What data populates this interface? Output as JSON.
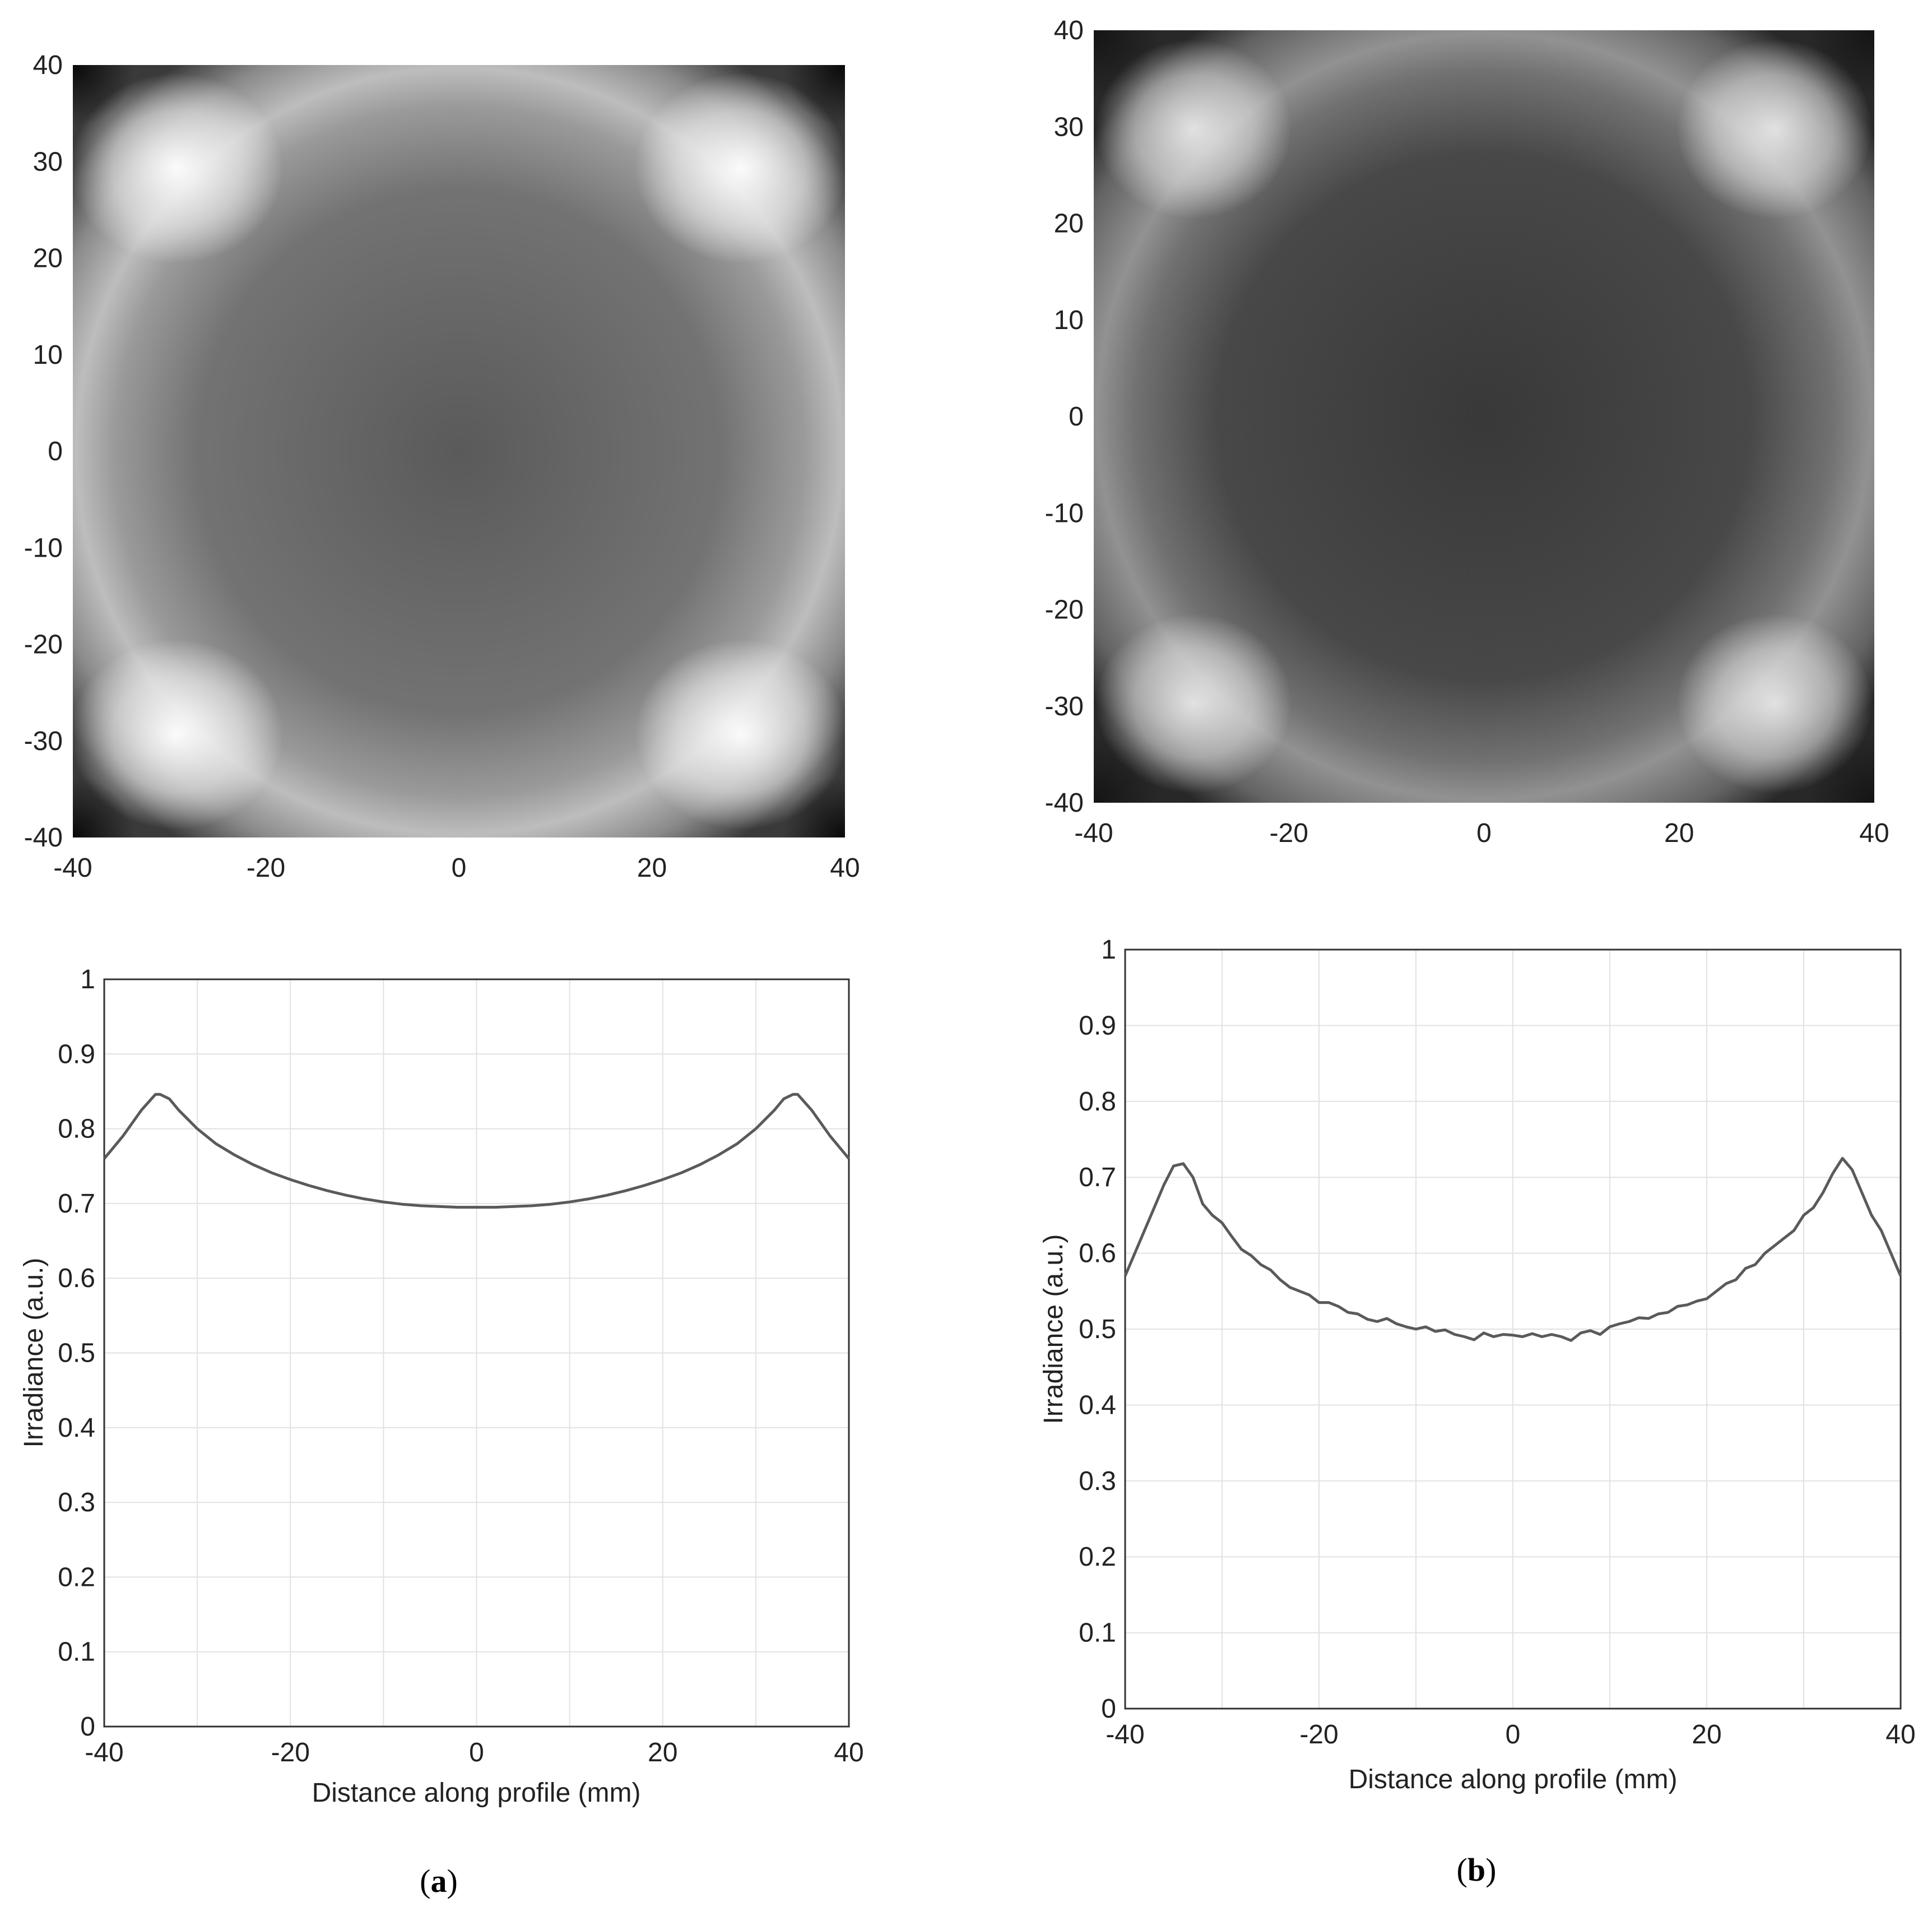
{
  "panels": [
    {
      "label_open": "(",
      "label_letter": "a",
      "label_close": ")",
      "image_plot": {
        "xticks": [
          -40,
          -20,
          0,
          20,
          40
        ],
        "yticks": [
          40,
          30,
          20,
          10,
          0,
          -10,
          -20,
          -30,
          -40
        ],
        "extent": [
          -40,
          40
        ]
      },
      "profile_plot": {
        "ylabel": "Irradiance (a.u.)",
        "xlabel": "Distance along profile (mm)",
        "xticks": [
          -40,
          -20,
          0,
          20,
          40
        ],
        "yticks": [
          0,
          0.1,
          0.2,
          0.3,
          0.4,
          0.5,
          0.6,
          0.7,
          0.8,
          0.9,
          1
        ]
      }
    },
    {
      "label_open": "(",
      "label_letter": "b",
      "label_close": ")",
      "image_plot": {
        "xticks": [
          -40,
          -20,
          0,
          20,
          40
        ],
        "yticks": [
          40,
          30,
          20,
          10,
          0,
          -10,
          -20,
          -30,
          -40
        ],
        "extent": [
          -40,
          40
        ]
      },
      "profile_plot": {
        "ylabel": "Irradiance (a.u.)",
        "xlabel": "Distance along profile (mm)",
        "xticks": [
          -40,
          -20,
          0,
          20,
          40
        ],
        "yticks": [
          0,
          0.1,
          0.2,
          0.3,
          0.4,
          0.5,
          0.6,
          0.7,
          0.8,
          0.9,
          1
        ]
      }
    }
  ],
  "chart_data": [
    {
      "type": "heatmap",
      "panel": "a",
      "xlim": [
        -40,
        40
      ],
      "ylim": [
        -40,
        40
      ],
      "colormap": "gray",
      "grid": false,
      "description_values": {
        "center": "dark",
        "edge_ring": "lighter",
        "corners_inner": "bright",
        "corners_outer": "dark"
      }
    },
    {
      "type": "line",
      "panel": "a",
      "xlabel": "Distance along profile (mm)",
      "ylabel": "Irradiance (a.u.)",
      "xlim": [
        -40,
        40
      ],
      "ylim": [
        0,
        1
      ],
      "grid": true,
      "series": [
        {
          "x": [
            -40,
            -38,
            -36,
            -34.5,
            -34,
            -33,
            -32,
            -30,
            -28,
            -26,
            -24,
            -22,
            -20,
            -18,
            -16,
            -14,
            -12,
            -10,
            -8,
            -6,
            -4,
            -2,
            0,
            2,
            4,
            6,
            8,
            10,
            12,
            14,
            16,
            18,
            20,
            22,
            24,
            26,
            28,
            30,
            32,
            33,
            34,
            34.5,
            36,
            38,
            40
          ],
          "y": [
            0.76,
            0.79,
            0.825,
            0.846,
            0.846,
            0.84,
            0.825,
            0.8,
            0.78,
            0.765,
            0.752,
            0.741,
            0.732,
            0.724,
            0.717,
            0.711,
            0.706,
            0.702,
            0.699,
            0.697,
            0.696,
            0.695,
            0.695,
            0.695,
            0.696,
            0.697,
            0.699,
            0.702,
            0.706,
            0.711,
            0.717,
            0.724,
            0.732,
            0.741,
            0.752,
            0.765,
            0.78,
            0.8,
            0.825,
            0.84,
            0.846,
            0.846,
            0.825,
            0.79,
            0.76
          ]
        }
      ]
    },
    {
      "type": "heatmap",
      "panel": "b",
      "xlim": [
        -40,
        40
      ],
      "ylim": [
        -40,
        40
      ],
      "colormap": "gray",
      "grid": false,
      "description_values": {
        "center": "dark",
        "edge_ring": "lighter",
        "corners_inner": "bright",
        "corners_outer": "dark"
      }
    },
    {
      "type": "line",
      "panel": "b",
      "xlabel": "Distance along profile (mm)",
      "ylabel": "Irradiance (a.u.)",
      "xlim": [
        -40,
        40
      ],
      "ylim": [
        0,
        1
      ],
      "grid": true,
      "series": [
        {
          "x": [
            -40,
            -39,
            -38,
            -37,
            -36,
            -35,
            -34,
            -33,
            -32,
            -31,
            -30,
            -29,
            -28,
            -27,
            -26,
            -25,
            -24,
            -23,
            -22,
            -21,
            -20,
            -19,
            -18,
            -17,
            -16,
            -15,
            -14,
            -13,
            -12,
            -11,
            -10,
            -9,
            -8,
            -7,
            -6,
            -5,
            -4,
            -3,
            -2,
            -1,
            0,
            1,
            2,
            3,
            4,
            5,
            6,
            7,
            8,
            9,
            10,
            11,
            12,
            13,
            14,
            15,
            16,
            17,
            18,
            19,
            20,
            21,
            22,
            23,
            24,
            25,
            26,
            27,
            28,
            29,
            30,
            31,
            32,
            33,
            34,
            35,
            36,
            37,
            38,
            39,
            40
          ],
          "y": [
            0.57,
            0.6,
            0.63,
            0.66,
            0.69,
            0.715,
            0.718,
            0.7,
            0.665,
            0.65,
            0.64,
            0.622,
            0.605,
            0.597,
            0.585,
            0.578,
            0.565,
            0.555,
            0.55,
            0.545,
            0.535,
            0.535,
            0.53,
            0.522,
            0.52,
            0.513,
            0.51,
            0.514,
            0.507,
            0.503,
            0.5,
            0.503,
            0.497,
            0.499,
            0.493,
            0.49,
            0.486,
            0.495,
            0.49,
            0.493,
            0.492,
            0.49,
            0.494,
            0.49,
            0.493,
            0.49,
            0.485,
            0.495,
            0.498,
            0.493,
            0.503,
            0.507,
            0.51,
            0.515,
            0.514,
            0.52,
            0.522,
            0.53,
            0.532,
            0.537,
            0.54,
            0.55,
            0.56,
            0.565,
            0.58,
            0.585,
            0.6,
            0.61,
            0.62,
            0.63,
            0.65,
            0.66,
            0.68,
            0.705,
            0.725,
            0.71,
            0.68,
            0.65,
            0.63,
            0.6,
            0.57
          ]
        }
      ]
    }
  ]
}
